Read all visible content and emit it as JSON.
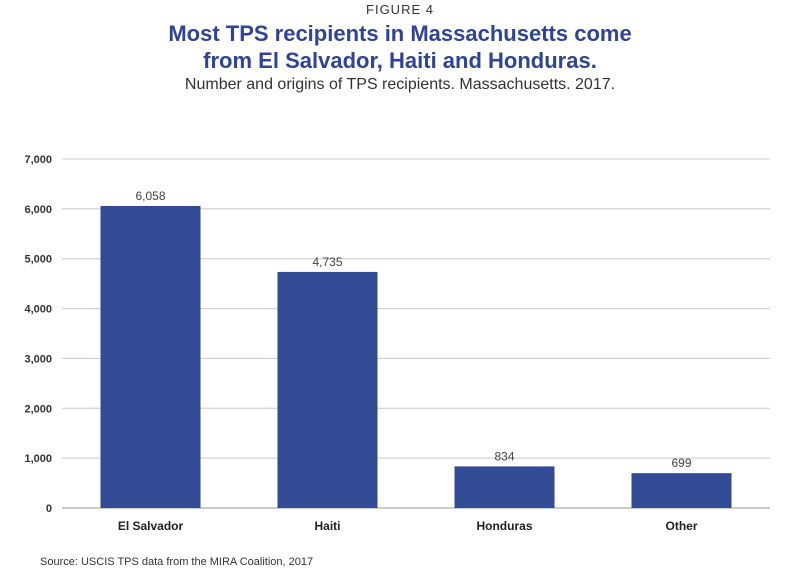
{
  "header": {
    "figure_label": "FIGURE 4",
    "title_line1": "Most TPS recipients in Massachusetts come",
    "title_line2": "from El Salvador, Haiti and Honduras.",
    "subtitle": "Number and origins of TPS recipients. Massachusetts. 2017."
  },
  "footer": {
    "source": "Source: USCIS TPS data from the MIRA Coalition, 2017"
  },
  "colors": {
    "bar": "#334a94",
    "grid": "#c8c8c8",
    "title": "#2e4496"
  },
  "chart_data": {
    "type": "bar",
    "title": "Most TPS recipients in Massachusetts come from El Salvador, Haiti and Honduras.",
    "subtitle": "Number and origins of TPS recipients. Massachusetts. 2017.",
    "categories": [
      "El Salvador",
      "Haiti",
      "Honduras",
      "Other"
    ],
    "values": [
      6058,
      4735,
      834,
      699
    ],
    "data_labels": [
      "6,058",
      "4,735",
      "834",
      "699"
    ],
    "xlabel": "",
    "ylabel": "",
    "ylim": [
      0,
      7000
    ],
    "yticks": [
      0,
      1000,
      2000,
      3000,
      4000,
      5000,
      6000,
      7000
    ],
    "ytick_labels": [
      "0",
      "1,000",
      "2,000",
      "3,000",
      "4,000",
      "5,000",
      "6,000",
      "7,000"
    ],
    "grid": true,
    "legend": "none"
  }
}
